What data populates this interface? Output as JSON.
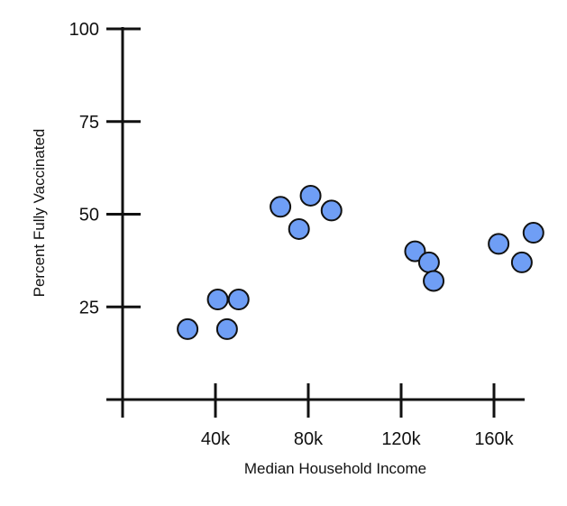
{
  "chart_data": {
    "type": "scatter",
    "title": "",
    "xlabel": "Median Household Income",
    "ylabel": "Percent Fully Vaccinated",
    "xlim": [
      0,
      180000
    ],
    "ylim": [
      0,
      100
    ],
    "x_ticks": [
      {
        "value": 40000,
        "label": "40k"
      },
      {
        "value": 80000,
        "label": "80k"
      },
      {
        "value": 120000,
        "label": "120k"
      },
      {
        "value": 160000,
        "label": "160k"
      }
    ],
    "y_ticks": [
      {
        "value": 25,
        "label": "25"
      },
      {
        "value": 50,
        "label": "50"
      },
      {
        "value": 75,
        "label": "75"
      },
      {
        "value": 100,
        "label": "100"
      }
    ],
    "grid": false,
    "legend": "none",
    "point_color": "#6f9ef5",
    "series": [
      {
        "points": [
          {
            "x": 28000,
            "y": 19
          },
          {
            "x": 41000,
            "y": 27
          },
          {
            "x": 45000,
            "y": 19
          },
          {
            "x": 50000,
            "y": 27
          },
          {
            "x": 68000,
            "y": 52
          },
          {
            "x": 76000,
            "y": 46
          },
          {
            "x": 81000,
            "y": 55
          },
          {
            "x": 90000,
            "y": 51
          },
          {
            "x": 126000,
            "y": 40
          },
          {
            "x": 132000,
            "y": 37
          },
          {
            "x": 134000,
            "y": 32
          },
          {
            "x": 162000,
            "y": 42
          },
          {
            "x": 172000,
            "y": 37
          },
          {
            "x": 177000,
            "y": 45
          }
        ]
      }
    ]
  }
}
